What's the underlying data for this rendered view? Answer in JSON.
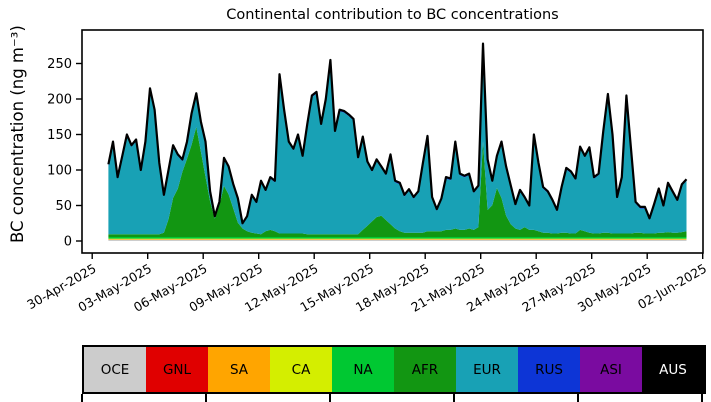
{
  "figure": {
    "title": "Continental contribution to BC concentrations",
    "ylabel": "BC concentration (ng m⁻³)"
  },
  "chart_data": {
    "type": "area",
    "stacked": true,
    "title": "Continental contribution to BC concentrations",
    "xlabel": "",
    "ylabel": "BC concentration (ng m⁻³)",
    "x_unit": "days since 30-Apr-2025 00:00, 6-hour resolution",
    "x_start": 0.875,
    "x_step": 0.25,
    "ylim": [
      -17,
      297
    ],
    "yticks": [
      "0",
      "50",
      "100",
      "150",
      "200",
      "250"
    ],
    "ytick_values": [
      0,
      50,
      100,
      150,
      200,
      250
    ],
    "xtick_labels": [
      "30-Apr-2025",
      "03-May-2025",
      "06-May-2025",
      "09-May-2025",
      "12-May-2025",
      "15-May-2025",
      "18-May-2025",
      "21-May-2025",
      "24-May-2025",
      "27-May-2025",
      "30-May-2025",
      "02-Jun-2025"
    ],
    "xtick_days": [
      0,
      3,
      6,
      9,
      12,
      15,
      18,
      21,
      24,
      27,
      30,
      33
    ],
    "grid": false,
    "legend_position": "bottom-strip",
    "total_line_color": "#000000",
    "series": [
      {
        "name": "OCE",
        "color": "#cccccc",
        "values": 1.5
      },
      {
        "name": "GNL",
        "color": "#e00000",
        "values": 0.3
      },
      {
        "name": "SA",
        "color": "#ffa500",
        "values": 0.6
      },
      {
        "name": "CA",
        "color": "#d4ee00",
        "values": 1.0
      },
      {
        "name": "NA",
        "color": "#00c832",
        "values": 2.2
      },
      {
        "name": "AFR",
        "color": "#129612",
        "values": [
          4,
          4,
          4,
          4,
          4,
          4,
          4,
          4,
          4,
          4,
          4,
          4,
          6,
          25,
          55,
          68,
          92,
          110,
          130,
          155,
          120,
          85,
          50,
          26,
          45,
          72,
          60,
          40,
          20,
          12,
          8,
          6,
          5,
          4,
          8,
          10,
          8,
          5,
          5,
          5,
          5,
          5,
          5,
          4,
          4,
          4,
          4,
          4,
          4,
          4,
          4,
          4,
          4,
          4,
          4,
          10,
          16,
          22,
          28,
          30,
          24,
          18,
          12,
          8,
          6,
          6,
          6,
          6,
          6,
          8,
          8,
          8,
          8,
          10,
          10,
          12,
          10,
          10,
          12,
          10,
          14,
          135,
          38,
          45,
          69,
          55,
          30,
          18,
          12,
          10,
          14,
          10,
          10,
          8,
          6,
          6,
          5,
          5,
          6,
          6,
          5,
          5,
          10,
          8,
          6,
          5,
          5,
          6,
          6,
          5,
          5,
          5,
          5,
          5,
          6,
          6,
          5,
          5,
          5,
          6,
          6,
          7,
          6,
          6,
          7,
          8
        ]
      },
      {
        "name": "EUR",
        "color": "#18a1b5",
        "values": [
          96,
          128,
          78,
          108,
          138,
          123,
          131,
          88,
          128,
          203,
          173,
          98,
          51,
          67,
          72,
          46,
          15,
          22,
          42,
          45,
          40,
          47,
          12,
          1,
          2,
          37,
          37,
          32,
          32,
          5,
          19,
          51,
          42,
          73,
          56,
          72,
          69,
          222,
          172,
          127,
          117,
          137,
          107,
          153,
          193,
          198,
          153,
          188,
          243,
          143,
          173,
          171,
          166,
          160,
          106,
          129,
          88,
          70,
          79,
          67,
          63,
          96,
          65,
          66,
          51,
          59,
          48,
          56,
          96,
          132,
          46,
          29,
          44,
          72,
          70,
          120,
          77,
          74,
          75,
          52,
          56,
          135,
          69,
          32,
          43,
          77,
          67,
          52,
          32,
          54,
          40,
          32,
          132,
          94,
          62,
          56,
          45,
          31,
          62,
          89,
          85,
          75,
          115,
          104,
          118,
          77,
          82,
          141,
          193,
          137,
          49,
          77,
          192,
          117,
          41,
          34,
          35,
          19,
          39,
          60,
          36,
          67,
          56,
          44,
          65,
          71
        ]
      },
      {
        "name": "RUS",
        "color": "#0d35d6",
        "values": 2.1
      },
      {
        "name": "ASI",
        "color": "#7a0ba0",
        "values": 0.3
      },
      {
        "name": "AUS",
        "color": "#000000",
        "values": 0.0
      }
    ],
    "total": [
      108,
      140,
      90,
      120,
      150,
      135,
      143,
      100,
      140,
      215,
      185,
      110,
      65,
      100,
      135,
      122,
      115,
      140,
      180,
      208,
      168,
      140,
      70,
      35,
      55,
      117,
      105,
      80,
      60,
      25,
      35,
      65,
      55,
      85,
      72,
      90,
      85,
      235,
      185,
      140,
      130,
      150,
      120,
      165,
      205,
      210,
      165,
      200,
      255,
      155,
      185,
      183,
      178,
      172,
      118,
      147,
      112,
      100,
      115,
      105,
      95,
      122,
      85,
      82,
      65,
      73,
      62,
      70,
      110,
      148,
      62,
      45,
      60,
      90,
      88,
      140,
      95,
      92,
      95,
      70,
      78,
      278,
      115,
      85,
      120,
      140,
      105,
      78,
      52,
      72,
      62,
      50,
      150,
      110,
      76,
      70,
      58,
      44,
      76,
      103,
      98,
      88,
      133,
      120,
      132,
      90,
      95,
      155,
      207,
      150,
      62,
      90,
      205,
      130,
      55,
      48,
      48,
      32,
      52,
      74,
      50,
      82,
      70,
      58,
      80,
      87
    ]
  },
  "legend": {
    "entries": [
      {
        "label": "OCE",
        "color": "#cccccc",
        "text_color": "#000000"
      },
      {
        "label": "GNL",
        "color": "#e00000",
        "text_color": "#000000"
      },
      {
        "label": "SA",
        "color": "#ffa500",
        "text_color": "#000000"
      },
      {
        "label": "CA",
        "color": "#d4ee00",
        "text_color": "#000000"
      },
      {
        "label": "NA",
        "color": "#00c832",
        "text_color": "#000000"
      },
      {
        "label": "AFR",
        "color": "#129612",
        "text_color": "#000000"
      },
      {
        "label": "EUR",
        "color": "#18a1b5",
        "text_color": "#000000"
      },
      {
        "label": "RUS",
        "color": "#0d35d6",
        "text_color": "#000000"
      },
      {
        "label": "ASI",
        "color": "#7a0ba0",
        "text_color": "#000000"
      },
      {
        "label": "AUS",
        "color": "#000000",
        "text_color": "#ffffff"
      }
    ]
  }
}
